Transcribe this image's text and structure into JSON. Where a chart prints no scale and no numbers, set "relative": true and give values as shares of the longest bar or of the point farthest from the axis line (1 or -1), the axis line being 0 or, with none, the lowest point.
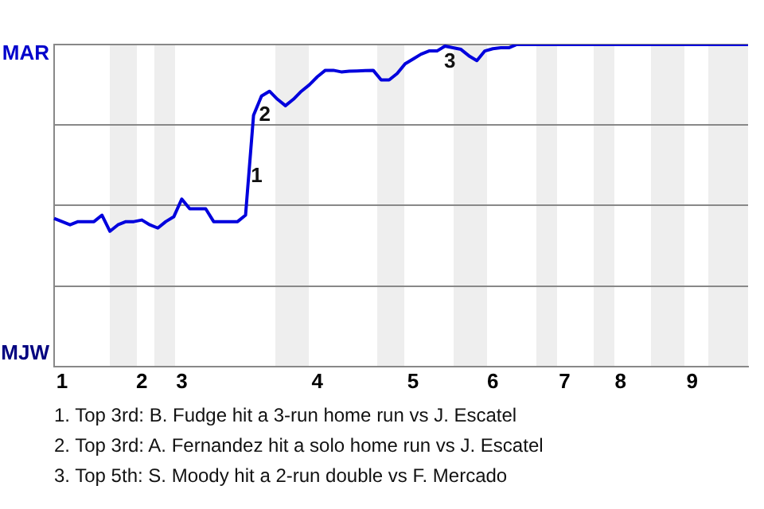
{
  "chart_data": {
    "type": "line",
    "relative": true,
    "categories": [
      null,
      "1",
      null,
      null,
      null,
      null,
      null,
      null,
      null,
      null,
      null,
      "2",
      null,
      null,
      null,
      null,
      "3",
      null,
      null,
      null,
      null,
      null,
      null,
      null,
      null,
      null,
      null,
      null,
      null,
      null,
      null,
      null,
      null,
      "4",
      null,
      null,
      null,
      null,
      null,
      null,
      null,
      null,
      null,
      null,
      null,
      "5",
      null,
      null,
      null,
      null,
      null,
      null,
      null,
      null,
      null,
      "6",
      null,
      null,
      null,
      null,
      null,
      null,
      null,
      null,
      "7",
      null,
      null,
      null,
      null,
      null,
      null,
      "8",
      null,
      null,
      null,
      null,
      null,
      null,
      null,
      null,
      "9",
      null,
      null,
      null,
      null,
      null,
      null,
      null
    ],
    "grid": "y",
    "legend": false,
    "marker": "none",
    "line_style": "solid",
    "series": [
      {
        "color": "#0000dd",
        "values": [
          0.46,
          0.45,
          0.44,
          0.45,
          0.45,
          0.45,
          0.47,
          0.42,
          0.44,
          0.45,
          0.45,
          0.455,
          0.44,
          0.43,
          0.45,
          0.465,
          0.52,
          0.49,
          0.49,
          0.49,
          0.45,
          0.45,
          0.45,
          0.45,
          0.47,
          0.78,
          0.84,
          0.855,
          0.83,
          0.81,
          0.83,
          0.855,
          0.875,
          0.9,
          0.92,
          0.92,
          0.915,
          0.917,
          0.918,
          0.919,
          0.92,
          0.89,
          0.89,
          0.91,
          0.94,
          0.955,
          0.97,
          0.98,
          0.98,
          0.995,
          0.99,
          0.985,
          0.965,
          0.95,
          0.98,
          0.987,
          0.99,
          0.99,
          1,
          1,
          1,
          1,
          1,
          1,
          1,
          1,
          1,
          1,
          1,
          1,
          1,
          1,
          1,
          1,
          1,
          1,
          1,
          1,
          1,
          1,
          1,
          1,
          1,
          1,
          1,
          1,
          1,
          1
        ]
      }
    ],
    "annotations": [
      "MAR",
      "MJW",
      "1",
      "2",
      "3",
      "1. Top 3rd: B. Fudge hit a 3-run home run vs J. Escatel",
      "2. Top 3rd: A. Fernandez hit a solo home run vs J. Escatel",
      "3. Top 5th: S. Moody hit a 2-run double vs F. Mercado"
    ]
  }
}
